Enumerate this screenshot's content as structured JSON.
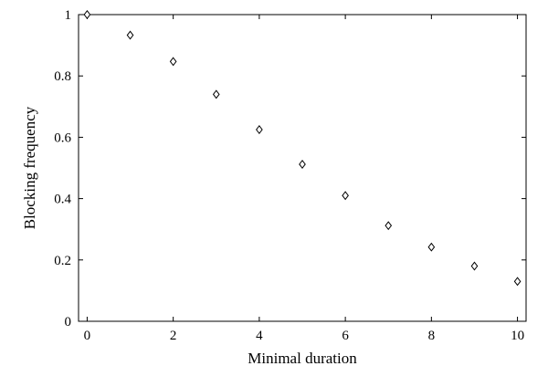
{
  "chart_data": {
    "type": "scatter",
    "title": "",
    "xlabel": "Minimal duration",
    "ylabel": "Blocking frequency",
    "xlim": [
      -0.2,
      10.2
    ],
    "ylim": [
      0,
      1
    ],
    "xticks": [
      0,
      2,
      4,
      6,
      8,
      10
    ],
    "xtick_labels": [
      "0",
      "2",
      "4",
      "6",
      "8",
      "10"
    ],
    "yticks": [
      0,
      0.2,
      0.4,
      0.6,
      0.8,
      1
    ],
    "ytick_labels": [
      "0",
      "0.2",
      "0.4",
      "0.6",
      "0.8",
      "1"
    ],
    "grid": false,
    "legend": false,
    "marker": "diamond-open",
    "color": "#000000",
    "series": [
      {
        "x": [
          0,
          1,
          2,
          3,
          4,
          5,
          6,
          7,
          8,
          9,
          10
        ],
        "y": [
          1.0,
          0.933,
          0.847,
          0.74,
          0.625,
          0.512,
          0.41,
          0.312,
          0.242,
          0.18,
          0.13
        ]
      }
    ]
  }
}
